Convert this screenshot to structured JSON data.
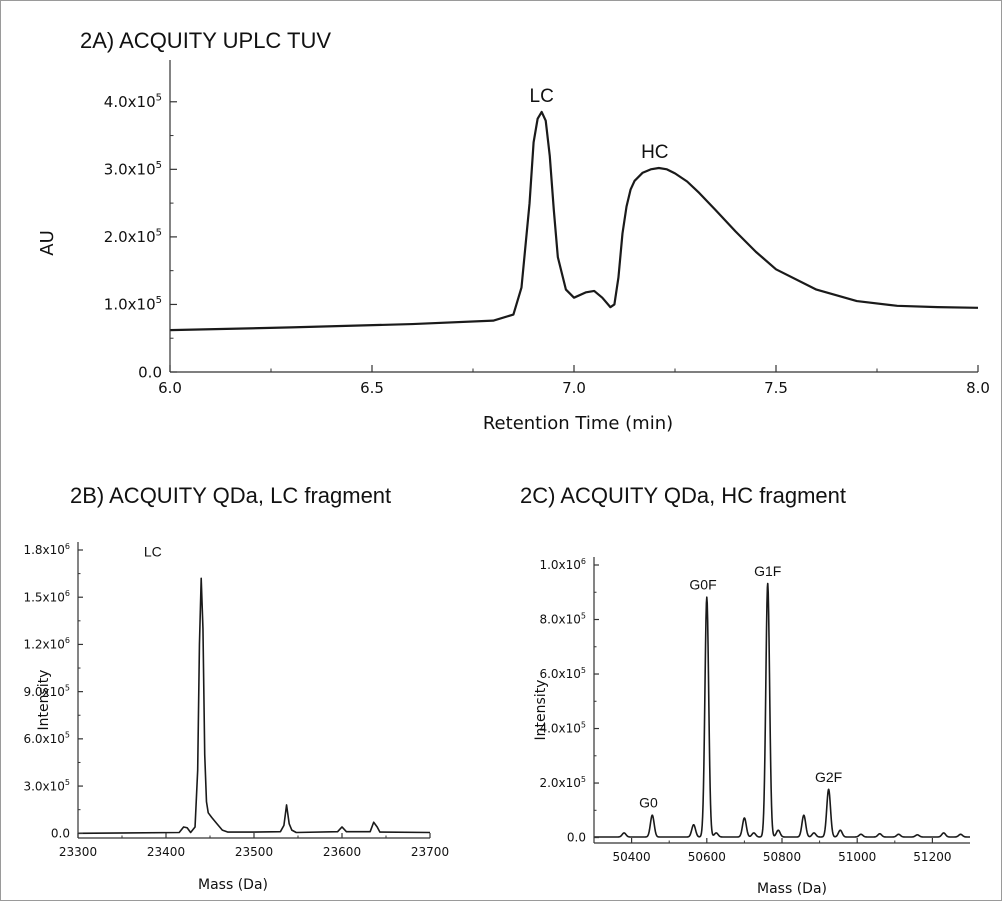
{
  "chart_data": [
    {
      "id": "2A",
      "type": "line",
      "title": "2A) ACQUITY UPLC TUV",
      "xlabel": "Retention Time (min)",
      "ylabel": "AU",
      "xlim": [
        6.0,
        8.0
      ],
      "ylim": [
        0,
        450000
      ],
      "xticks": [
        6.0,
        6.5,
        7.0,
        7.5,
        8.0
      ],
      "xtick_labels": [
        "6.0",
        "6.5",
        "7.0",
        "7.5",
        "8.0"
      ],
      "yticks": [
        0,
        100000,
        200000,
        300000,
        400000
      ],
      "ytick_labels": [
        {
          "mant": "0.0",
          "exp": ""
        },
        {
          "mant": "1.0x10",
          "exp": "5"
        },
        {
          "mant": "2.0x10",
          "exp": "5"
        },
        {
          "mant": "3.0x10",
          "exp": "5"
        },
        {
          "mant": "4.0x10",
          "exp": "5"
        }
      ],
      "series": [
        {
          "x": [
            6.0,
            6.3,
            6.6,
            6.8,
            6.85,
            6.87,
            6.89,
            6.9,
            6.91,
            6.92,
            6.93,
            6.94,
            6.95,
            6.96,
            6.98,
            7.0,
            7.03,
            7.05,
            7.07,
            7.09,
            7.1,
            7.11,
            7.12,
            7.13,
            7.14,
            7.15,
            7.17,
            7.19,
            7.21,
            7.23,
            7.25,
            7.28,
            7.31,
            7.35,
            7.4,
            7.45,
            7.5,
            7.6,
            7.7,
            7.8,
            7.9,
            8.0
          ],
          "y": [
            62000,
            66000,
            71000,
            76000,
            85000,
            125000,
            250000,
            340000,
            375000,
            385000,
            372000,
            320000,
            240000,
            170000,
            122000,
            110000,
            118000,
            120000,
            110000,
            96000,
            100000,
            140000,
            205000,
            245000,
            270000,
            283000,
            295000,
            300000,
            302000,
            300000,
            294000,
            282000,
            265000,
            240000,
            208000,
            178000,
            152000,
            122000,
            105000,
            98000,
            96000,
            95000
          ]
        }
      ],
      "annotations": [
        {
          "text": "LC",
          "x": 6.92,
          "y": 385000
        },
        {
          "text": "HC",
          "x": 7.2,
          "y": 302000
        }
      ]
    },
    {
      "id": "2B",
      "type": "line",
      "title": "2B) ACQUITY QDa, LC fragment",
      "xlabel": "Mass (Da)",
      "ylabel": "Intensity",
      "xlim": [
        23300,
        23700
      ],
      "ylim": [
        -30000,
        1800000
      ],
      "xticks": [
        23300,
        23400,
        23500,
        23600,
        23700
      ],
      "xtick_labels": [
        "23300",
        "23400",
        "23500",
        "23600",
        "23700"
      ],
      "yticks": [
        0,
        300000,
        600000,
        900000,
        1200000,
        1500000,
        1800000
      ],
      "ytick_labels": [
        {
          "mant": "0.0",
          "exp": ""
        },
        {
          "mant": "3.0x10",
          "exp": "5"
        },
        {
          "mant": "6.0x10",
          "exp": "5"
        },
        {
          "mant": "9.0x10",
          "exp": "5"
        },
        {
          "mant": "1.2x10",
          "exp": "6"
        },
        {
          "mant": "1.5x10",
          "exp": "6"
        },
        {
          "mant": "1.8x10",
          "exp": "6"
        }
      ],
      "series": [
        {
          "x": [
            23300,
            23415,
            23420,
            23424,
            23428,
            23433,
            23436,
            23438,
            23440,
            23442,
            23444,
            23446,
            23448,
            23452,
            23458,
            23464,
            23470,
            23500,
            23530,
            23534,
            23537,
            23540,
            23543,
            23548,
            23595,
            23600,
            23605,
            23632,
            23636,
            23640,
            23643,
            23700
          ],
          "y": [
            0,
            5000,
            40000,
            35000,
            5000,
            40000,
            400000,
            1200000,
            1620000,
            1300000,
            500000,
            200000,
            130000,
            100000,
            60000,
            20000,
            8000,
            8000,
            10000,
            50000,
            180000,
            60000,
            20000,
            5000,
            10000,
            40000,
            10000,
            10000,
            70000,
            40000,
            8000,
            5000
          ]
        }
      ],
      "annotations": [
        {
          "text": "LC",
          "x": 23385,
          "y": 1620000
        }
      ]
    },
    {
      "id": "2C",
      "type": "line",
      "title": "2C) ACQUITY QDa, HC fragment",
      "xlabel": "Mass (Da)",
      "ylabel": "Intensity",
      "xlim": [
        50300,
        51300
      ],
      "ylim": [
        -20000,
        1000000
      ],
      "xticks": [
        50400,
        50600,
        50800,
        51000,
        51200
      ],
      "xtick_labels": [
        "50400",
        "50600",
        "50800",
        "51000",
        "51200"
      ],
      "yticks": [
        0,
        200000,
        400000,
        600000,
        800000,
        1000000
      ],
      "ytick_labels": [
        {
          "mant": "0.0",
          "exp": ""
        },
        {
          "mant": "2.0x10",
          "exp": "5"
        },
        {
          "mant": "4.0x10",
          "exp": "5"
        },
        {
          "mant": "6.0x10",
          "exp": "5"
        },
        {
          "mant": "8.0x10",
          "exp": "5"
        },
        {
          "mant": "1.0x10",
          "exp": "6"
        }
      ],
      "peaks": [
        {
          "x": 50380,
          "y": 15000,
          "w": 5
        },
        {
          "x": 50455,
          "y": 80000,
          "w": 5
        },
        {
          "x": 50565,
          "y": 45000,
          "w": 5
        },
        {
          "x": 50600,
          "y": 880000,
          "w": 5
        },
        {
          "x": 50625,
          "y": 15000,
          "w": 5
        },
        {
          "x": 50700,
          "y": 70000,
          "w": 5
        },
        {
          "x": 50725,
          "y": 15000,
          "w": 5
        },
        {
          "x": 50762,
          "y": 930000,
          "w": 5
        },
        {
          "x": 50790,
          "y": 25000,
          "w": 5
        },
        {
          "x": 50858,
          "y": 80000,
          "w": 5
        },
        {
          "x": 50885,
          "y": 15000,
          "w": 5
        },
        {
          "x": 50924,
          "y": 175000,
          "w": 5
        },
        {
          "x": 50955,
          "y": 25000,
          "w": 5
        },
        {
          "x": 51010,
          "y": 10000,
          "w": 5
        },
        {
          "x": 51060,
          "y": 12000,
          "w": 5
        },
        {
          "x": 51110,
          "y": 10000,
          "w": 5
        },
        {
          "x": 51160,
          "y": 8000,
          "w": 5
        },
        {
          "x": 51230,
          "y": 15000,
          "w": 5
        },
        {
          "x": 51275,
          "y": 10000,
          "w": 5
        }
      ],
      "annotations": [
        {
          "text": "G0",
          "x": 50445,
          "y": 80000
        },
        {
          "text": "G0F",
          "x": 50590,
          "y": 880000
        },
        {
          "text": "G1F",
          "x": 50762,
          "y": 930000
        },
        {
          "text": "G2F",
          "x": 50924,
          "y": 175000
        }
      ]
    }
  ]
}
